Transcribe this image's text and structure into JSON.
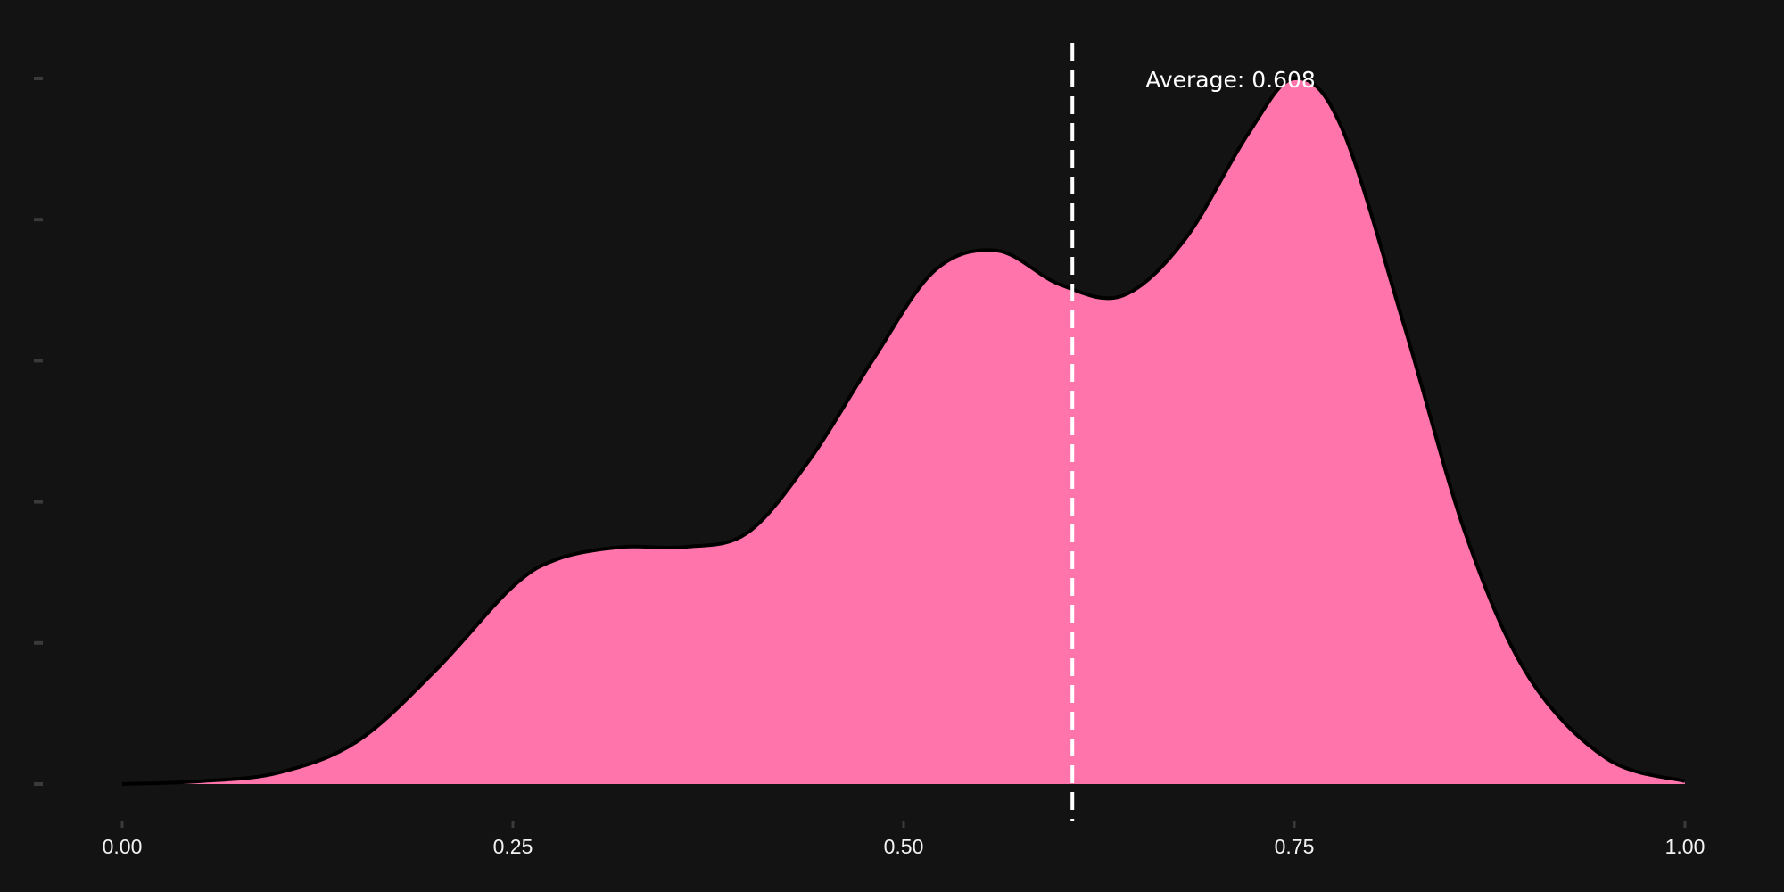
{
  "chart_data": {
    "type": "area",
    "xlim": [
      0,
      1
    ],
    "ylim": [
      0,
      2.5
    ],
    "grid": false,
    "x_ticks": [
      "0.00",
      "0.25",
      "0.50",
      "0.75",
      "1.00"
    ],
    "x_tick_values": [
      0,
      0.25,
      0.5,
      0.75,
      1
    ],
    "y_ticks": [
      "",
      "",
      "",
      "",
      "",
      ""
    ],
    "y_tick_values": [
      0,
      0.5,
      1.0,
      1.5,
      2.0,
      2.5
    ],
    "series": [
      {
        "x": [
          0,
          0.05,
          0.1,
          0.15,
          0.2,
          0.25,
          0.28,
          0.32,
          0.36,
          0.4,
          0.44,
          0.48,
          0.52,
          0.56,
          0.6,
          0.64,
          0.68,
          0.72,
          0.75,
          0.78,
          0.82,
          0.86,
          0.9,
          0.95,
          1.0
        ],
        "y": [
          0.0,
          0.01,
          0.04,
          0.15,
          0.4,
          0.7,
          0.8,
          0.84,
          0.84,
          0.89,
          1.15,
          1.5,
          1.82,
          1.89,
          1.77,
          1.73,
          1.93,
          2.3,
          2.5,
          2.33,
          1.63,
          0.88,
          0.38,
          0.09,
          0.01
        ],
        "fill": "#ff75ab",
        "stroke": "#000000"
      }
    ],
    "reference_line": {
      "x": 0.608,
      "color": "#ffffff",
      "style": "dashed"
    },
    "annotation": "Average: 0.608"
  }
}
